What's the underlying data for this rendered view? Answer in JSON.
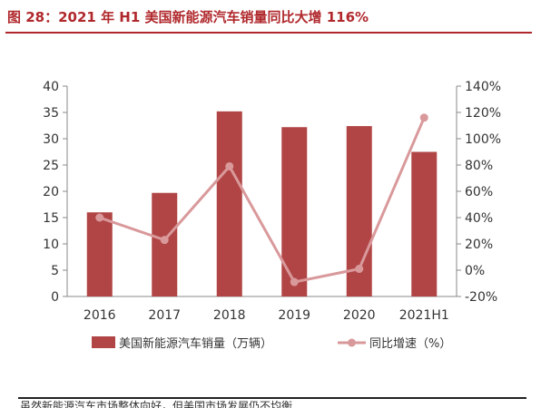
{
  "figure": {
    "title": "图 28：2021 年 H1 美国新能源汽车销量同比大增 116%",
    "footer_fragment": "虽然新能源汽车市场整体向好，但美国市场发展仍不均衡"
  },
  "colors": {
    "title": "#b0282c",
    "bar": "#b14545",
    "line": "#d9999b",
    "axis": "#888888",
    "text": "#333333"
  },
  "chart_data": {
    "type": "bar",
    "categories": [
      "2016",
      "2017",
      "2018",
      "2019",
      "2020",
      "2021H1"
    ],
    "series": [
      {
        "name": "美国新能源汽车销量（万辆）",
        "type": "bar",
        "axis": "left",
        "values": [
          16.0,
          19.7,
          35.2,
          32.2,
          32.4,
          27.5
        ]
      },
      {
        "name": "同比增速（%）",
        "type": "line",
        "axis": "right",
        "values": [
          40,
          23,
          79,
          -9,
          1,
          116
        ]
      }
    ],
    "y_left": {
      "min": 0,
      "max": 40,
      "ticks": [
        "0",
        "5",
        "10",
        "15",
        "20",
        "25",
        "30",
        "35",
        "40"
      ]
    },
    "y_right": {
      "min": -20,
      "max": 140,
      "ticks": [
        "-20%",
        "0%",
        "20%",
        "40%",
        "60%",
        "80%",
        "100%",
        "120%",
        "140%"
      ]
    },
    "legend": {
      "position": "bottom"
    },
    "grid": false
  }
}
